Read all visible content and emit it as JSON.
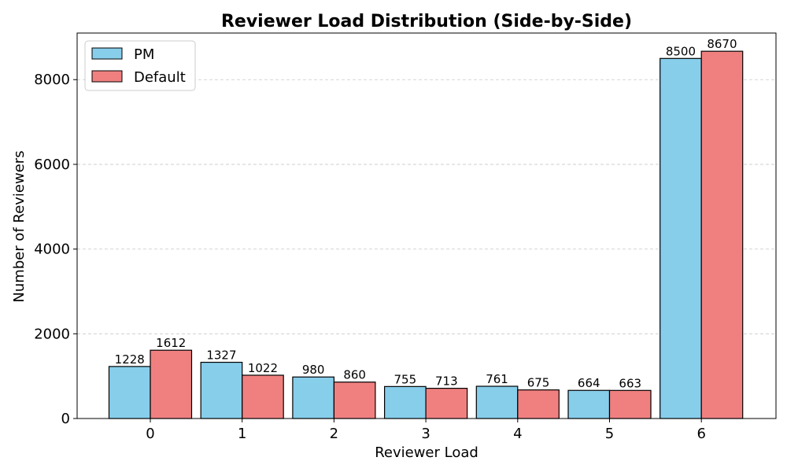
{
  "chart_data": {
    "type": "bar",
    "title": "Reviewer Load Distribution (Side-by-Side)",
    "xlabel": "Reviewer Load",
    "ylabel": "Number of Reviewers",
    "categories": [
      "0",
      "1",
      "2",
      "3",
      "4",
      "5",
      "6"
    ],
    "series": [
      {
        "name": "PM",
        "color": "#87CEEB",
        "values": [
          1228,
          1327,
          980,
          755,
          761,
          664,
          8500
        ]
      },
      {
        "name": "Default",
        "color": "#F08080",
        "values": [
          1612,
          1022,
          860,
          713,
          675,
          663,
          8670
        ]
      }
    ],
    "ylim": [
      0,
      9100
    ],
    "yticks": [
      0,
      2000,
      4000,
      6000,
      8000
    ],
    "grid": "y-dashed",
    "legend": "top-left",
    "show_data_labels": true
  }
}
